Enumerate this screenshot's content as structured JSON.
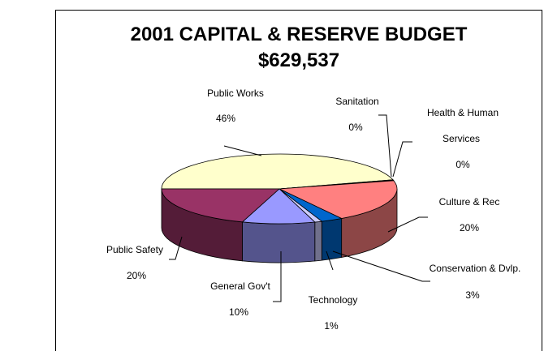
{
  "chart_data": {
    "type": "pie",
    "title": "2001 CAPITAL & RESERVE BUDGET",
    "subtitle": "$629,537",
    "slices": [
      {
        "name": "Public Works",
        "pct_label": "46%",
        "value": 46,
        "color": "#ffffcc"
      },
      {
        "name": "Sanitation",
        "pct_label": "0%",
        "value": 0.2,
        "color": "#a0a0a0"
      },
      {
        "name": "Health & Human Services",
        "pct_label": "0%",
        "value": 0.2,
        "color": "#c0c0c0"
      },
      {
        "name": "Culture & Rec",
        "pct_label": "20%",
        "value": 20,
        "color": "#ff8080"
      },
      {
        "name": "Conservation & Dvlp.",
        "pct_label": "3%",
        "value": 3,
        "color": "#0066cc"
      },
      {
        "name": "Technology",
        "pct_label": "1%",
        "value": 1,
        "color": "#ccccff"
      },
      {
        "name": "General Gov't",
        "pct_label": "10%",
        "value": 10,
        "color": "#9999ff"
      },
      {
        "name": "Public Safety",
        "pct_label": "20%",
        "value": 20,
        "color": "#993366"
      }
    ]
  }
}
